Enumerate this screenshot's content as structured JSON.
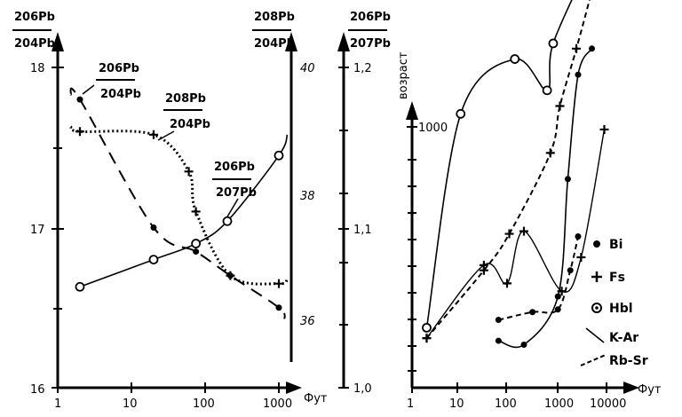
{
  "chart_data": [
    {
      "type": "line",
      "x_ticks": [
        "1",
        "10",
        "100",
        "1000"
      ],
      "x_unit": "Фут",
      "left_axis": {
        "ticks": [
          "16",
          "17",
          "18"
        ],
        "label_num": "206Pb",
        "label_den": "204Pb"
      },
      "right_axis_1": {
        "label_num": "208Pb",
        "label_den": "204Pb",
        "ticks": [
          "40",
          "38",
          "36"
        ]
      },
      "right_axis_2": {
        "label_num": "206Pb",
        "label_den": "207Pb",
        "ticks": [
          "1,2",
          "1,1",
          "1,0"
        ]
      },
      "series": [
        {
          "name": "206Pb/204Pb",
          "style": "dashed",
          "marker": "dot",
          "x": [
            2,
            20,
            75,
            220,
            1000
          ],
          "y": [
            17.8,
            17.0,
            16.85,
            16.7,
            16.5
          ]
        },
        {
          "name": "208Pb/204Pb",
          "style": "dotted",
          "marker": "plus",
          "x": [
            2,
            20,
            60,
            75,
            220,
            1000
          ],
          "y": [
            17.6,
            17.58,
            17.35,
            17.1,
            16.7,
            16.65
          ]
        },
        {
          "name": "206Pb/207Pb",
          "style": "solid",
          "marker": "circle",
          "x": [
            2,
            20,
            75,
            200,
            1000
          ],
          "y": [
            16.63,
            16.8,
            16.9,
            17.04,
            17.45
          ]
        }
      ],
      "curve_labels": [
        {
          "num": "206Pb",
          "den": "204Pb"
        },
        {
          "num": "208Pb",
          "den": "204Pb"
        },
        {
          "num": "206Pb",
          "den": "207Pb"
        }
      ]
    },
    {
      "type": "line",
      "ylabel": "возраст",
      "y_ticks": [
        "1000"
      ],
      "x_ticks": [
        "1",
        "10",
        "100",
        "1000",
        "10000"
      ],
      "x_unit": "Фут",
      "legend_position": "right",
      "legend": [
        {
          "key": "Bi",
          "marker": "dot"
        },
        {
          "key": "Fs",
          "marker": "plus"
        },
        {
          "key": "Hbl",
          "marker": "circle"
        },
        {
          "key": "K-Ar",
          "style": "solid"
        },
        {
          "key": "Rb-Sr",
          "style": "dashed"
        }
      ],
      "series": [
        {
          "name": "Hbl K-Ar",
          "x": [
            2,
            10,
            130,
            600,
            800,
            5000
          ],
          "y": [
            230,
            1050,
            1260,
            1140,
            1320,
            1650
          ]
        },
        {
          "name": "Fs Rb-Sr",
          "x": [
            2,
            30,
            100,
            700,
            1100,
            2400,
            5000
          ],
          "y": [
            190,
            450,
            590,
            900,
            1080,
            1300,
            1520
          ]
        },
        {
          "name": "Bi K-Ar",
          "x": [
            60,
            200,
            1000,
            1600,
            2600,
            5000
          ],
          "y": [
            180,
            165,
            350,
            800,
            1200,
            1300
          ]
        },
        {
          "name": "Fs K-Ar",
          "x": [
            2,
            30,
            90,
            200,
            1200,
            3000,
            9000
          ],
          "y": [
            190,
            470,
            400,
            600,
            370,
            500,
            990
          ]
        },
        {
          "name": "Bi Rb-Sr",
          "x": [
            60,
            300,
            1000,
            1800,
            2600
          ],
          "y": [
            260,
            290,
            300,
            450,
            580
          ]
        }
      ]
    }
  ]
}
